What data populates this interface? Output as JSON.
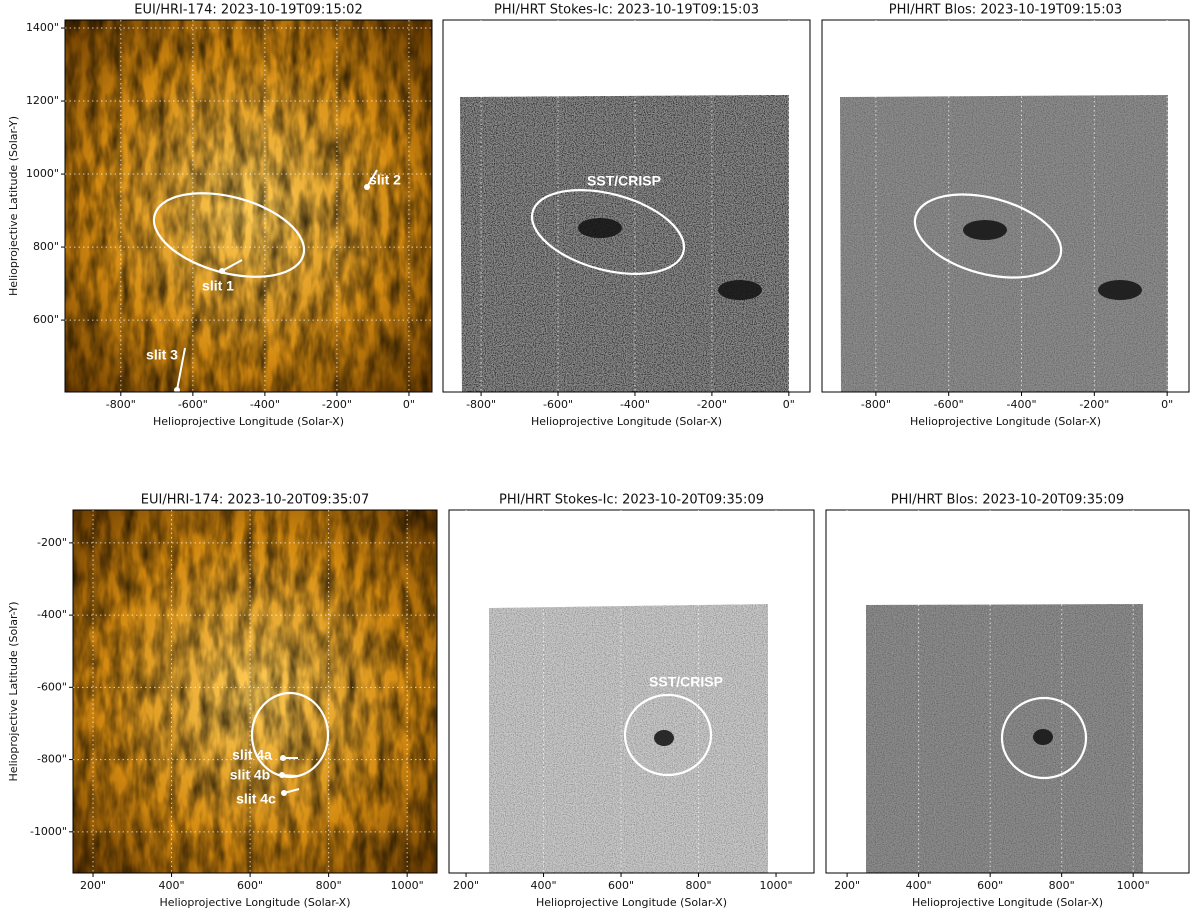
{
  "chart_data": [
    {
      "type": "image",
      "title": "EUI/HRI-174: 2023-10-19T09:15:02",
      "xlabel": "Helioprojective Longitude (Solar-X)",
      "ylabel": "Helioprojective Latitude (Solar-Y)",
      "xlim": [
        -955,
        64
      ],
      "ylim": [
        403,
        1422
      ],
      "xticks": [
        {
          "value": -800,
          "label": "-800\""
        },
        {
          "value": -600,
          "label": "-600\""
        },
        {
          "value": -400,
          "label": "-400\""
        },
        {
          "value": -200,
          "label": "-200\""
        },
        {
          "value": 0,
          "label": "0\""
        }
      ],
      "yticks": [
        {
          "value": 600,
          "label": "600\""
        },
        {
          "value": 800,
          "label": "800\""
        },
        {
          "value": 1000,
          "label": "1000\""
        },
        {
          "value": 1200,
          "label": "1200\""
        },
        {
          "value": 1400,
          "label": "1400\""
        }
      ],
      "annotations": [
        "slit 1",
        "slit 2",
        "slit 3"
      ]
    },
    {
      "type": "image",
      "title": "PHI/HRT Stokes-Ic: 2023-10-19T09:15:03",
      "xlabel": "Helioprojective Longitude (Solar-X)",
      "xlim": [
        -899,
        55
      ],
      "xticks": [
        {
          "value": -800,
          "label": "-800\""
        },
        {
          "value": -600,
          "label": "-600\""
        },
        {
          "value": -400,
          "label": "-400\""
        },
        {
          "value": -200,
          "label": "-200\""
        },
        {
          "value": 0,
          "label": "0\""
        }
      ],
      "annotations": [
        "SST/CRISP"
      ]
    },
    {
      "type": "image",
      "title": "PHI/HRT Blos: 2023-10-19T09:15:03",
      "xlabel": "Helioprojective Longitude (Solar-X)",
      "xlim": [
        -948,
        60
      ],
      "xticks": [
        {
          "value": -800,
          "label": "-800\""
        },
        {
          "value": -600,
          "label": "-600\""
        },
        {
          "value": -400,
          "label": "-400\""
        },
        {
          "value": -200,
          "label": "-200\""
        },
        {
          "value": 0,
          "label": "0\""
        }
      ]
    },
    {
      "type": "image",
      "title": "EUI/HRI-174: 2023-10-20T09:35:07",
      "xlabel": "Helioprojective Longitude (Solar-X)",
      "ylabel": "Helioprojective Latitude (Solar-Y)",
      "xlim": [
        149,
        1076
      ],
      "ylim": [
        -1114,
        -109
      ],
      "xticks": [
        {
          "value": 200,
          "label": "200\""
        },
        {
          "value": 400,
          "label": "400\""
        },
        {
          "value": 600,
          "label": "600\""
        },
        {
          "value": 800,
          "label": "800\""
        },
        {
          "value": 1000,
          "label": "1000\""
        }
      ],
      "yticks": [
        {
          "value": -1000,
          "label": "-1000\""
        },
        {
          "value": -800,
          "label": "-800\""
        },
        {
          "value": -600,
          "label": "-600\""
        },
        {
          "value": -400,
          "label": "-400\""
        },
        {
          "value": -200,
          "label": "-200\""
        }
      ],
      "annotations": [
        "slit 4a",
        "slit 4b",
        "slit 4c"
      ]
    },
    {
      "type": "image",
      "title": "PHI/HRT Stokes-Ic: 2023-10-20T09:35:09",
      "xlabel": "Helioprojective Longitude (Solar-X)",
      "xlim": [
        156,
        1098
      ],
      "xticks": [
        {
          "value": 200,
          "label": "200\""
        },
        {
          "value": 400,
          "label": "400\""
        },
        {
          "value": 600,
          "label": "600\""
        },
        {
          "value": 800,
          "label": "800\""
        },
        {
          "value": 1000,
          "label": "1000\""
        }
      ],
      "annotations": [
        "SST/CRISP"
      ]
    },
    {
      "type": "image",
      "title": "PHI/HRT Blos: 2023-10-20T09:35:09",
      "xlabel": "Helioprojective Longitude (Solar-X)",
      "xlim": [
        141,
        1156
      ],
      "xticks": [
        {
          "value": 200,
          "label": "200\""
        },
        {
          "value": 400,
          "label": "400\""
        },
        {
          "value": 600,
          "label": "600\""
        },
        {
          "value": 800,
          "label": "800\""
        },
        {
          "value": 1000,
          "label": "1000\""
        }
      ]
    }
  ]
}
